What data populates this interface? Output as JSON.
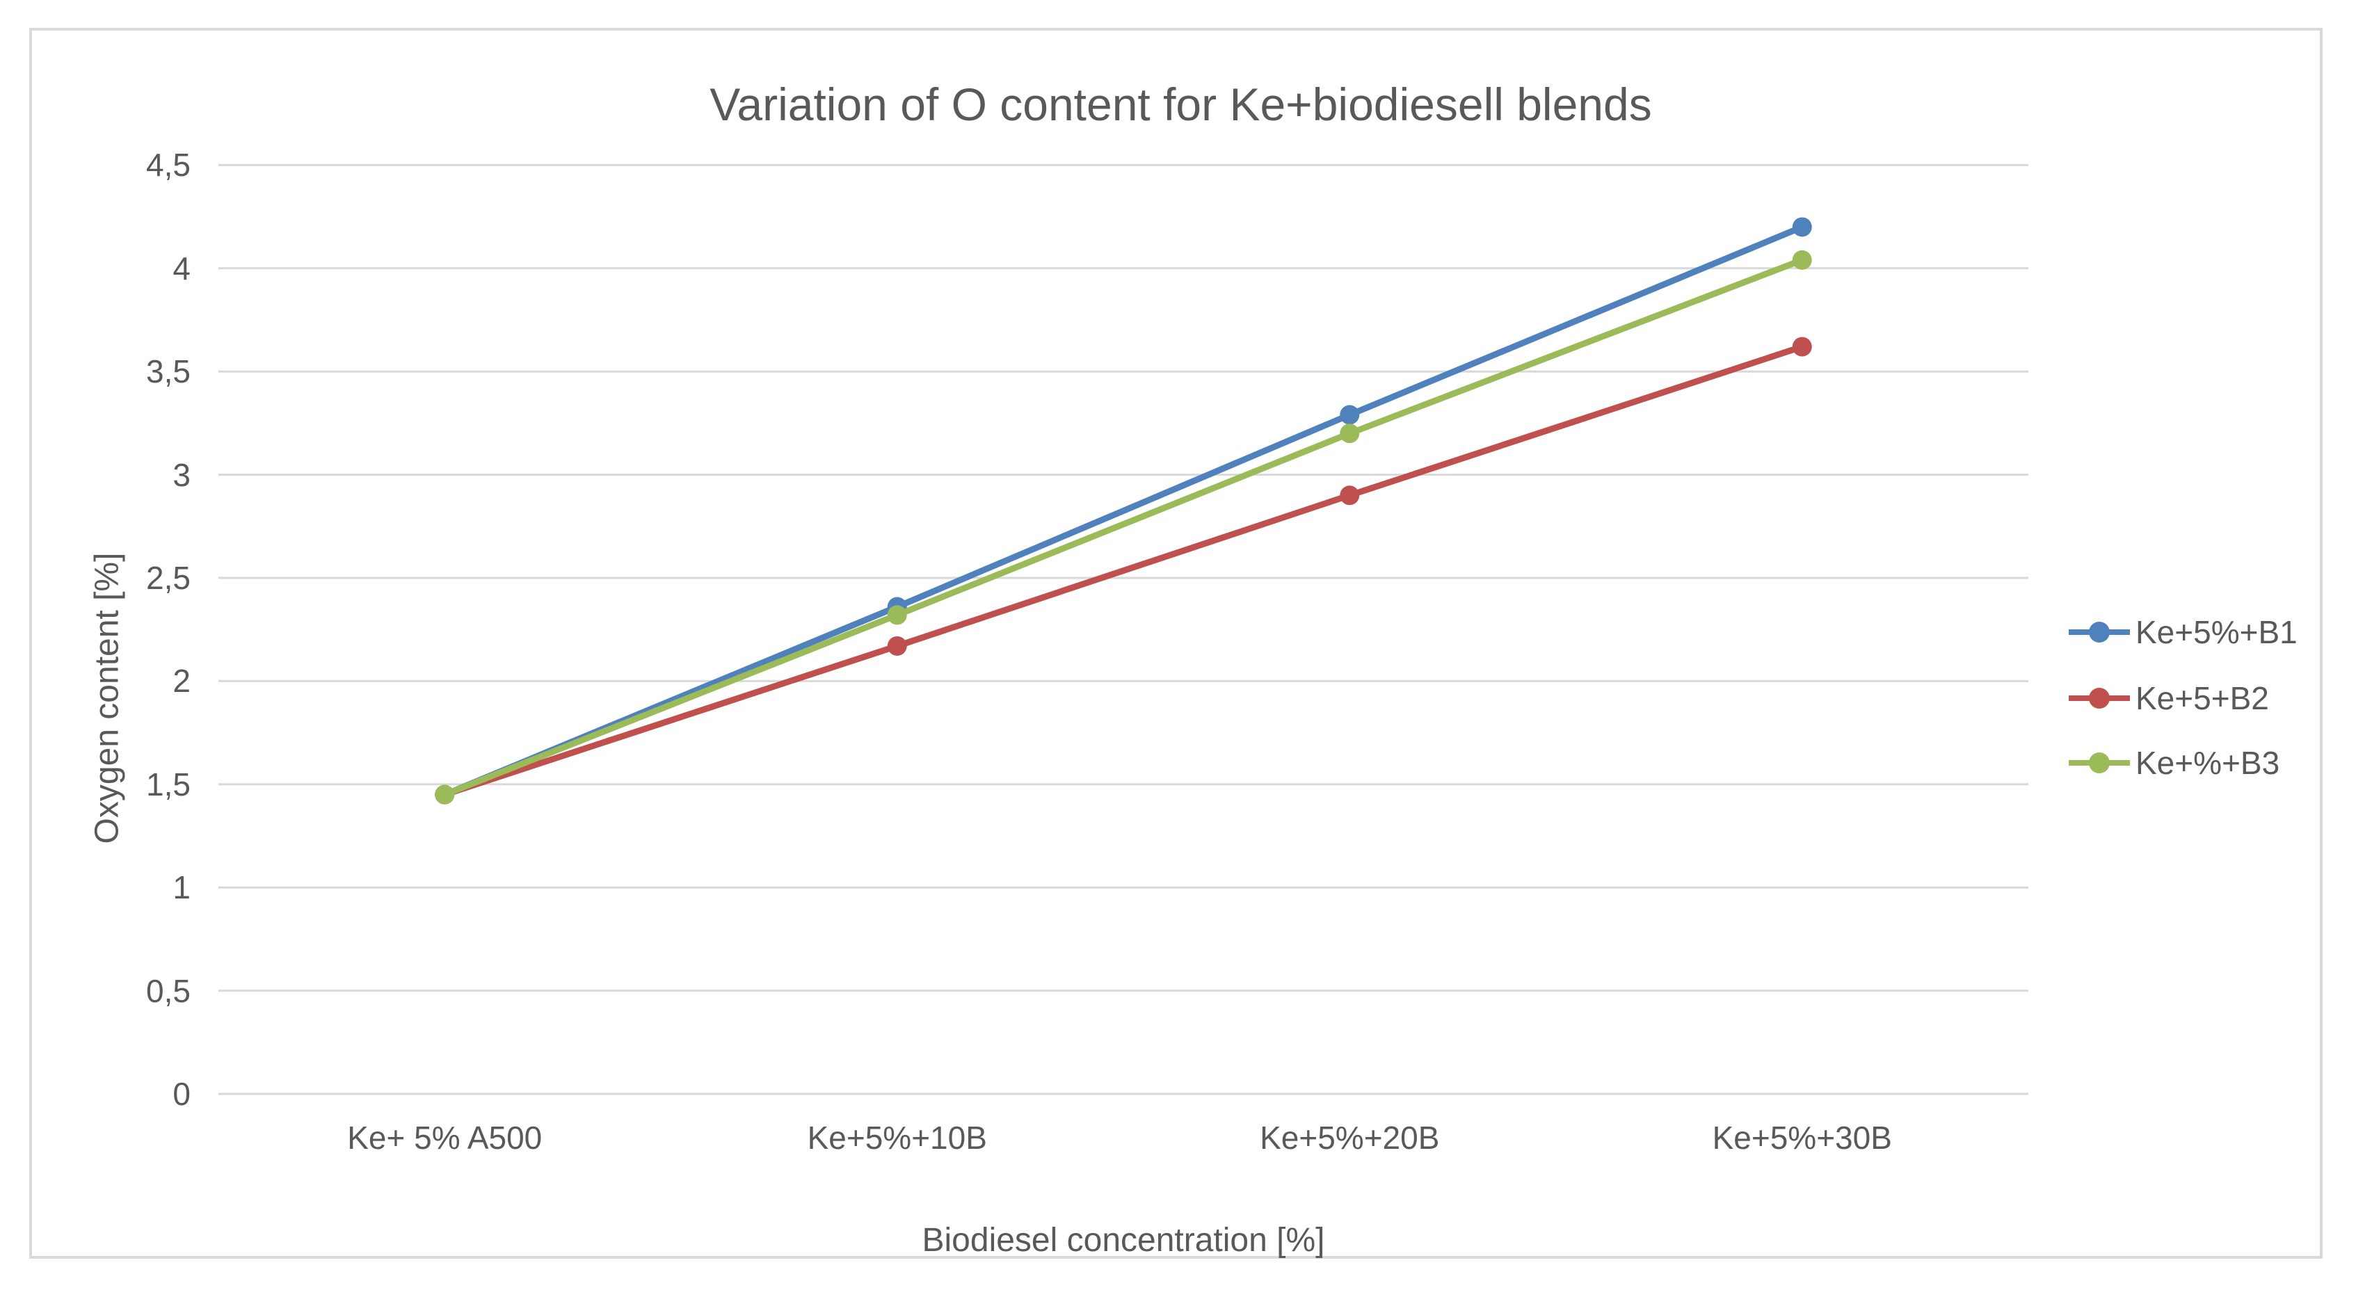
{
  "chart": {
    "title": "Variation of O content for Ke+biodiesell blends",
    "x_axis_title": "Biodiesel concentration [%]",
    "y_axis_title": "Oxygen content [%]"
  },
  "chart_data": {
    "type": "line",
    "title": "Variation of O content for Ke+biodiesell blends",
    "xlabel": "Biodiesel concentration [%]",
    "ylabel": "Oxygen content [%]",
    "categories": [
      "Ke+ 5% A500",
      "Ke+5%+10B",
      "Ke+5%+20B",
      "Ke+5%+30B"
    ],
    "series": [
      {
        "name": "Ke+5%+B1",
        "color": "#4F81BD",
        "values": [
          1.45,
          2.36,
          3.29,
          4.2
        ]
      },
      {
        "name": "Ke+5+B2",
        "color": "#C0504D",
        "values": [
          1.45,
          2.17,
          2.9,
          3.62
        ]
      },
      {
        "name": "Ke+%+B3",
        "color": "#9BBB59",
        "values": [
          1.45,
          2.32,
          3.2,
          4.04
        ]
      }
    ],
    "ylim": [
      0,
      4.5
    ],
    "ytick_step": 0.5,
    "ytick_labels": [
      "0",
      "0,5",
      "1",
      "1,5",
      "2",
      "2,5",
      "3",
      "3,5",
      "4",
      "4,5"
    ],
    "grid": true,
    "legend_position": "right",
    "colors": {
      "text": "#595959",
      "gridline": "#D9D9D9",
      "axis_line": "#D9D9D9",
      "frame_border": "#D9D9D9",
      "background": "#FFFFFF"
    }
  }
}
